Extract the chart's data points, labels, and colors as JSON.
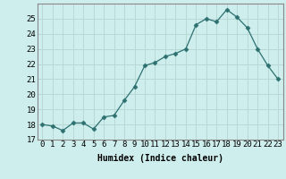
{
  "x": [
    0,
    1,
    2,
    3,
    4,
    5,
    6,
    7,
    8,
    9,
    10,
    11,
    12,
    13,
    14,
    15,
    16,
    17,
    18,
    19,
    20,
    21,
    22,
    23
  ],
  "y": [
    18.0,
    17.9,
    17.6,
    18.1,
    18.1,
    17.7,
    18.5,
    18.6,
    19.6,
    20.5,
    21.9,
    22.1,
    22.5,
    22.7,
    23.0,
    24.6,
    25.0,
    24.8,
    25.6,
    25.1,
    24.4,
    23.0,
    21.9,
    21.0
  ],
  "line_color": "#2d7070",
  "marker": "D",
  "marker_size": 2.5,
  "bg_color": "#ceeeed",
  "grid_color": "#b8d8d6",
  "xlabel": "Humidex (Indice chaleur)",
  "ylim": [
    17,
    26
  ],
  "xlim": [
    -0.5,
    23.5
  ],
  "yticks": [
    17,
    18,
    19,
    20,
    21,
    22,
    23,
    24,
    25
  ],
  "xtick_labels": [
    "0",
    "1",
    "2",
    "3",
    "4",
    "5",
    "6",
    "7",
    "8",
    "9",
    "10",
    "11",
    "12",
    "13",
    "14",
    "15",
    "16",
    "17",
    "18",
    "19",
    "20",
    "21",
    "22",
    "23"
  ],
  "label_fontsize": 7,
  "tick_fontsize": 6.5
}
